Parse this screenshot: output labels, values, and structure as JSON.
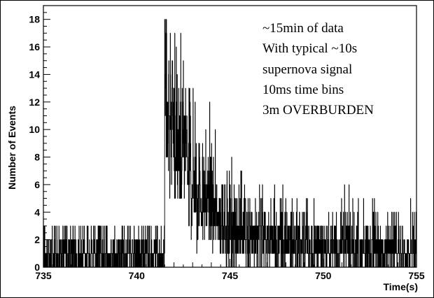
{
  "chart_data": {
    "type": "histogram",
    "title": "",
    "xlabel": "Time(s)",
    "ylabel": "Number of Events",
    "xlim": [
      735,
      755
    ],
    "ylim": [
      0,
      19
    ],
    "x_ticks": [
      "735",
      "740",
      "745",
      "750",
      "755"
    ],
    "y_ticks": [
      "0",
      "2",
      "4",
      "6",
      "8",
      "10",
      "12",
      "14",
      "16",
      "18"
    ],
    "bin_width_s": 0.01,
    "background_level": [
      0,
      3
    ],
    "signal_onset_s": 741.5,
    "signal_peak_events": 18,
    "annotations": [
      "~15min of data",
      "With typical ~10s",
      "supernova signal",
      "10ms time bins",
      "3m OVERBURDEN"
    ],
    "series_color": "#000000",
    "grid": false,
    "legend": "none"
  }
}
